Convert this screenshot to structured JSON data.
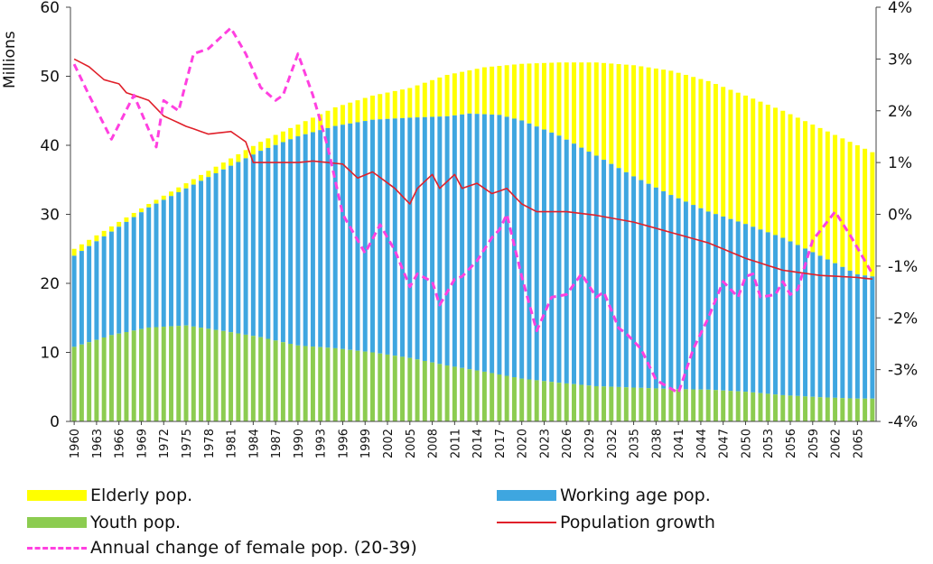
{
  "chart_data": {
    "type": "bar",
    "stacked": true,
    "ylabel": "Millions",
    "ylim": [
      0,
      60
    ],
    "y_ticks": [
      "0",
      "10",
      "20",
      "30",
      "40",
      "50",
      "60"
    ],
    "y2lim": [
      -4,
      4
    ],
    "y2_ticks": [
      "-4%",
      "-3%",
      "-2%",
      "-1%",
      "0%",
      "1%",
      "2%",
      "3%",
      "4%"
    ],
    "x_start": 1960,
    "x_end": 2067,
    "x_ticks": [
      "1960",
      "1963",
      "1966",
      "1969",
      "1972",
      "1975",
      "1978",
      "1981",
      "1984",
      "1987",
      "1990",
      "1993",
      "1996",
      "1999",
      "2002",
      "2005",
      "2008",
      "2011",
      "2014",
      "2017",
      "2020",
      "2023",
      "2026",
      "2029",
      "2032",
      "2035",
      "2038",
      "2041",
      "2044",
      "2047",
      "2050",
      "2053",
      "2056",
      "2059",
      "2062",
      "2065"
    ],
    "colors": {
      "elderly": "#ffff00",
      "working": "#3ea6e0",
      "youth": "#8ccc50",
      "growth": "#e0202a",
      "female": "#ff40e0"
    },
    "series": [
      {
        "name": "Elderly pop.",
        "axis": "left",
        "kind": "stacked-bar",
        "keypoints": [
          [
            1960,
            25
          ],
          [
            1970,
            31.5
          ],
          [
            1980,
            37.5
          ],
          [
            1985,
            40.5
          ],
          [
            1990,
            43
          ],
          [
            1995,
            45.5
          ],
          [
            2000,
            47.2
          ],
          [
            2005,
            48.3
          ],
          [
            2010,
            50.2
          ],
          [
            2015,
            51.3
          ],
          [
            2020,
            51.8
          ],
          [
            2025,
            52
          ],
          [
            2030,
            52
          ],
          [
            2035,
            51.6
          ],
          [
            2040,
            50.8
          ],
          [
            2045,
            49.3
          ],
          [
            2050,
            47.2
          ],
          [
            2055,
            45
          ],
          [
            2060,
            42.5
          ],
          [
            2065,
            40
          ],
          [
            2067,
            39
          ]
        ]
      },
      {
        "name": "Working age pop.",
        "axis": "left",
        "kind": "stacked-bar",
        "keypoints": [
          [
            1960,
            24
          ],
          [
            1970,
            31
          ],
          [
            1980,
            36.5
          ],
          [
            1985,
            39.2
          ],
          [
            1990,
            41.3
          ],
          [
            1995,
            42.8
          ],
          [
            2000,
            43.7
          ],
          [
            2005,
            44
          ],
          [
            2010,
            44.2
          ],
          [
            2013,
            44.6
          ],
          [
            2017,
            44.4
          ],
          [
            2020,
            43.6
          ],
          [
            2025,
            41.4
          ],
          [
            2030,
            38.5
          ],
          [
            2035,
            35.5
          ],
          [
            2040,
            32.8
          ],
          [
            2045,
            30.4
          ],
          [
            2050,
            28.6
          ],
          [
            2055,
            26.6
          ],
          [
            2060,
            24
          ],
          [
            2065,
            21.3
          ],
          [
            2067,
            21
          ]
        ]
      },
      {
        "name": "Youth pop.",
        "axis": "left",
        "kind": "stacked-bar",
        "keypoints": [
          [
            1960,
            10.8
          ],
          [
            1965,
            12.5
          ],
          [
            1970,
            13.6
          ],
          [
            1975,
            13.9
          ],
          [
            1980,
            13.1
          ],
          [
            1985,
            12.2
          ],
          [
            1990,
            11
          ],
          [
            1995,
            10.6
          ],
          [
            2000,
            10
          ],
          [
            2005,
            9.2
          ],
          [
            2010,
            8.1
          ],
          [
            2015,
            7.2
          ],
          [
            2020,
            6.2
          ],
          [
            2025,
            5.6
          ],
          [
            2030,
            5.1
          ],
          [
            2035,
            4.9
          ],
          [
            2040,
            4.7
          ],
          [
            2045,
            4.6
          ],
          [
            2050,
            4.3
          ],
          [
            2055,
            3.8
          ],
          [
            2060,
            3.5
          ],
          [
            2065,
            3.3
          ],
          [
            2067,
            3.3
          ]
        ]
      },
      {
        "name": "Population growth",
        "axis": "right",
        "kind": "line",
        "keypoints": [
          [
            1960,
            3
          ],
          [
            1962,
            2.85
          ],
          [
            1964,
            2.6
          ],
          [
            1966,
            2.52
          ],
          [
            1967,
            2.35
          ],
          [
            1970,
            2.2
          ],
          [
            1972,
            1.9
          ],
          [
            1975,
            1.7
          ],
          [
            1978,
            1.55
          ],
          [
            1981,
            1.6
          ],
          [
            1983,
            1.4
          ],
          [
            1984,
            1
          ],
          [
            1990,
            1
          ],
          [
            1992,
            1.03
          ],
          [
            1996,
            0.97
          ],
          [
            1998,
            0.7
          ],
          [
            2000,
            0.82
          ],
          [
            2003,
            0.5
          ],
          [
            2005,
            0.2
          ],
          [
            2006,
            0.5
          ],
          [
            2008,
            0.77
          ],
          [
            2009,
            0.5
          ],
          [
            2011,
            0.77
          ],
          [
            2012,
            0.5
          ],
          [
            2014,
            0.6
          ],
          [
            2016,
            0.4
          ],
          [
            2018,
            0.5
          ],
          [
            2020,
            0.2
          ],
          [
            2022,
            0.05
          ],
          [
            2026,
            0.05
          ],
          [
            2030,
            -0.02
          ],
          [
            2035,
            -0.15
          ],
          [
            2040,
            -0.35
          ],
          [
            2045,
            -0.55
          ],
          [
            2050,
            -0.85
          ],
          [
            2055,
            -1.08
          ],
          [
            2060,
            -1.18
          ],
          [
            2065,
            -1.22
          ],
          [
            2067,
            -1.25
          ]
        ]
      },
      {
        "name": "Annual change of female pop. (20-39)",
        "axis": "right",
        "kind": "dashed-line",
        "keypoints": [
          [
            1960,
            2.9
          ],
          [
            1962,
            2.3
          ],
          [
            1965,
            1.45
          ],
          [
            1968,
            2.3
          ],
          [
            1971,
            1.3
          ],
          [
            1972,
            2.2
          ],
          [
            1974,
            2
          ],
          [
            1976,
            3.1
          ],
          [
            1978,
            3.2
          ],
          [
            1981,
            3.6
          ],
          [
            1983,
            3.1
          ],
          [
            1985,
            2.45
          ],
          [
            1987,
            2.2
          ],
          [
            1988,
            2.3
          ],
          [
            1990,
            3.1
          ],
          [
            1992,
            2.3
          ],
          [
            1994,
            1.3
          ],
          [
            1996,
            0
          ],
          [
            1999,
            -0.75
          ],
          [
            2001,
            -0.2
          ],
          [
            2003,
            -0.7
          ],
          [
            2005,
            -1.4
          ],
          [
            2006,
            -1.15
          ],
          [
            2008,
            -1.3
          ],
          [
            2009,
            -1.75
          ],
          [
            2011,
            -1.25
          ],
          [
            2012,
            -1.2
          ],
          [
            2014,
            -0.9
          ],
          [
            2016,
            -0.45
          ],
          [
            2017,
            -0.3
          ],
          [
            2018,
            0
          ],
          [
            2020,
            -1.2
          ],
          [
            2022,
            -2.25
          ],
          [
            2024,
            -1.6
          ],
          [
            2026,
            -1.55
          ],
          [
            2028,
            -1.15
          ],
          [
            2030,
            -1.6
          ],
          [
            2031,
            -1.5
          ],
          [
            2033,
            -2.2
          ],
          [
            2034,
            -2.3
          ],
          [
            2036,
            -2.6
          ],
          [
            2038,
            -3.2
          ],
          [
            2041,
            -3.45
          ],
          [
            2043,
            -2.6
          ],
          [
            2045,
            -2
          ],
          [
            2047,
            -1.3
          ],
          [
            2049,
            -1.6
          ],
          [
            2050,
            -1.2
          ],
          [
            2051,
            -1.15
          ],
          [
            2052,
            -1.6
          ],
          [
            2054,
            -1.55
          ],
          [
            2055,
            -1.3
          ],
          [
            2056,
            -1.55
          ],
          [
            2057,
            -1.45
          ],
          [
            2059,
            -0.5
          ],
          [
            2062,
            0.05
          ],
          [
            2064,
            -0.4
          ],
          [
            2067,
            -1.15
          ]
        ]
      }
    ]
  }
}
